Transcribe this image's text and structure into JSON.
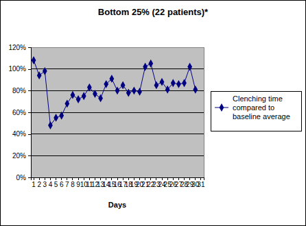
{
  "chart_data": {
    "type": "line",
    "title": "Bottom 25% (22 patients)*",
    "x_label": "Days",
    "categories": [
      "1",
      "2",
      "3",
      "4",
      "5",
      "6",
      "7",
      "8",
      "9",
      "10",
      "11",
      "12",
      "13",
      "14",
      "15",
      "16",
      "17",
      "18",
      "19",
      "20",
      "21",
      "22",
      "23",
      "24",
      "25",
      "26",
      "27",
      "28",
      "29",
      "30",
      "31"
    ],
    "series": [
      {
        "name": "Clenching time compared to baseline average",
        "color": "#000080",
        "marker": "diamond",
        "values": [
          108,
          94,
          98,
          48,
          55,
          57,
          68,
          76,
          72,
          75,
          83,
          77,
          73,
          86,
          91,
          80,
          85,
          78,
          80,
          79,
          102,
          105,
          85,
          88,
          81,
          87,
          86,
          87,
          102,
          81,
          null
        ]
      }
    ],
    "ylim": [
      0,
      120
    ],
    "yticks": [
      {
        "value": 0,
        "label": "0%"
      },
      {
        "value": 20,
        "label": "20%"
      },
      {
        "value": 40,
        "label": "40%"
      },
      {
        "value": 60,
        "label": "60%"
      },
      {
        "value": 80,
        "label": "80%"
      },
      {
        "value": 100,
        "label": "100%"
      },
      {
        "value": 120,
        "label": "120%"
      }
    ],
    "grid": true,
    "legend": "right"
  }
}
